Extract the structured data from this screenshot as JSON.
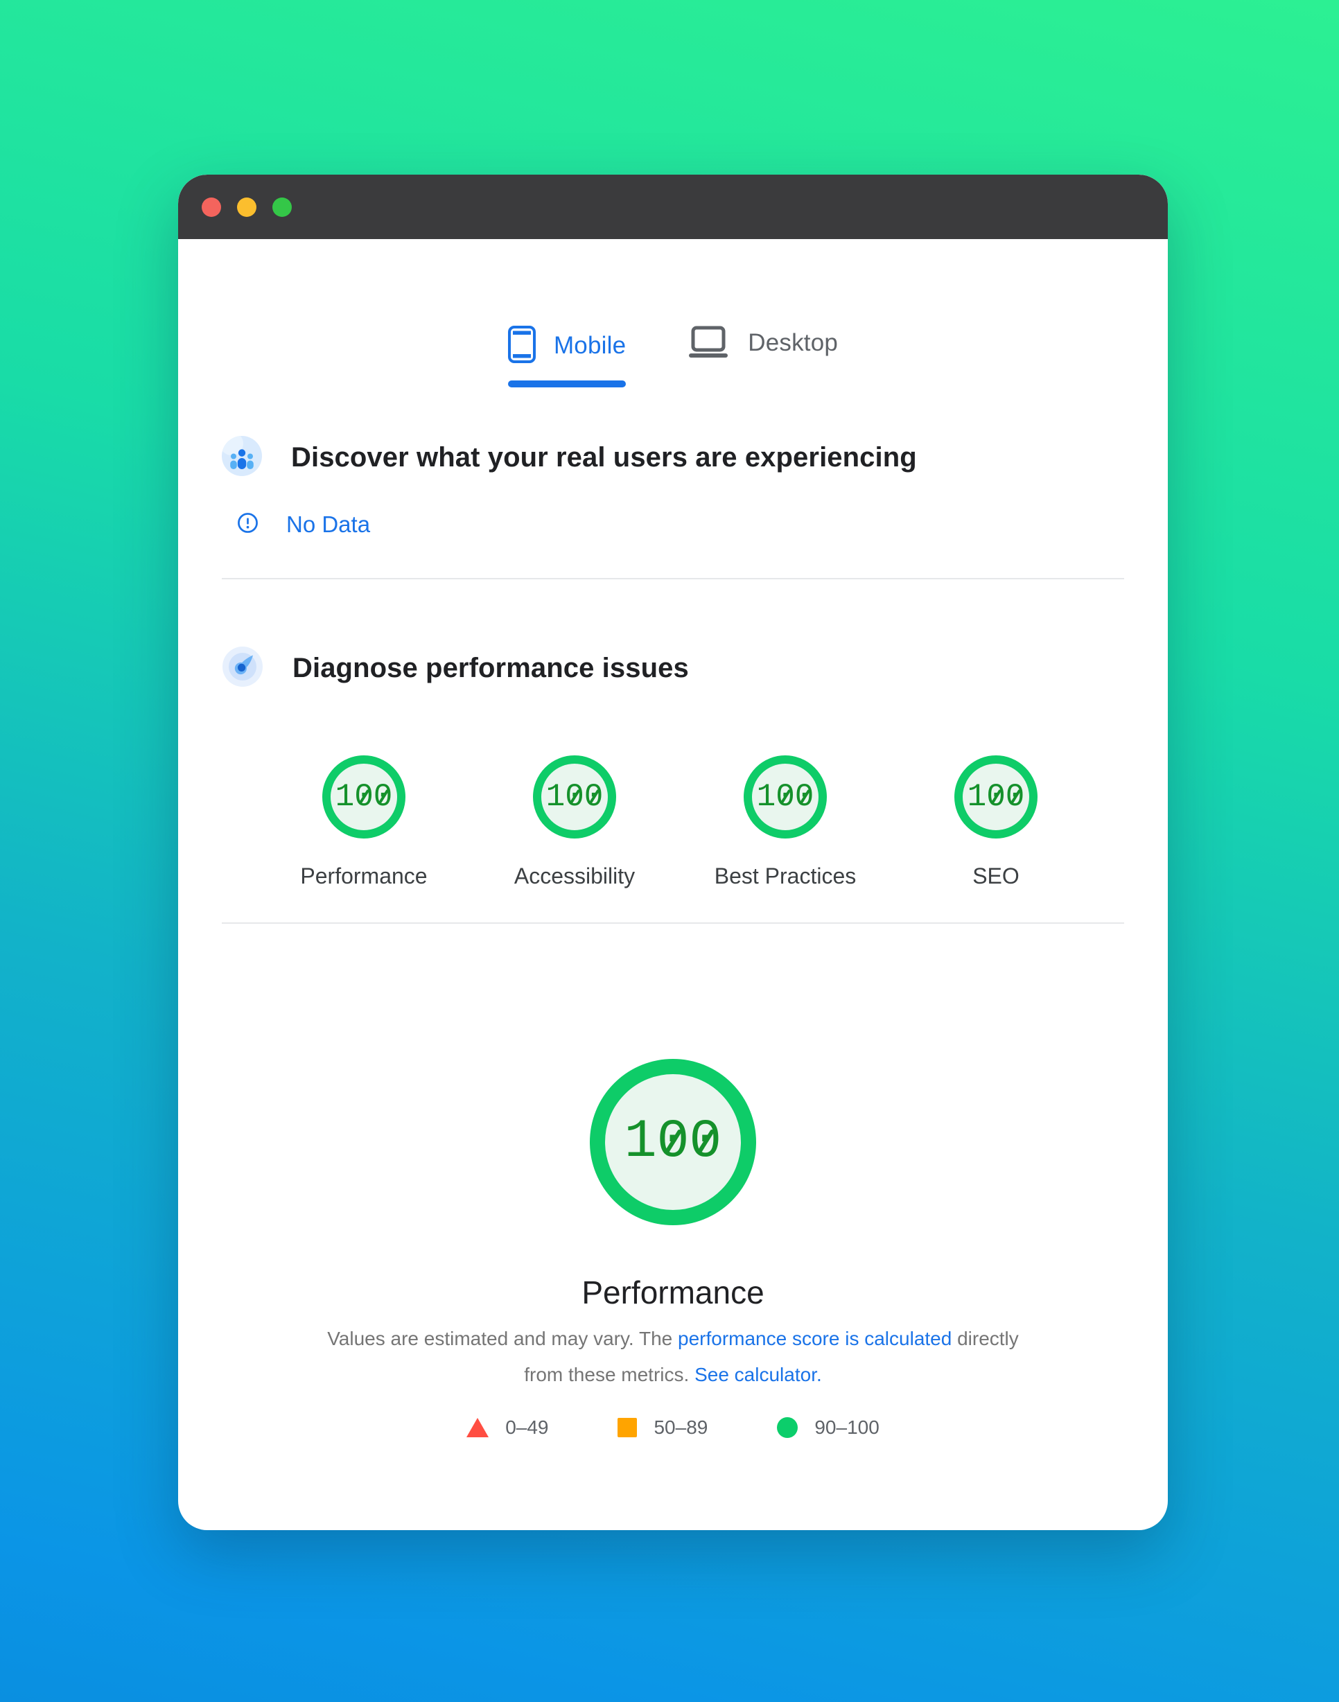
{
  "window": {
    "traffic_lights": [
      "close-button",
      "minimize-button",
      "zoom-button"
    ]
  },
  "tabs": [
    {
      "label": "Mobile",
      "icon": "phone-icon",
      "active": true
    },
    {
      "label": "Desktop",
      "icon": "laptop-icon",
      "active": false
    }
  ],
  "field_data": {
    "icon": "users-icon",
    "title": "Discover what your real users are experiencing",
    "status": {
      "icon": "alert-icon",
      "label": "No Data"
    }
  },
  "diagnose": {
    "icon": "compass-icon",
    "title": "Diagnose performance issues",
    "categories": [
      {
        "label": "Performance",
        "score": "100"
      },
      {
        "label": "Accessibility",
        "score": "100"
      },
      {
        "label": "Best Practices",
        "score": "100"
      },
      {
        "label": "SEO",
        "score": "100"
      }
    ]
  },
  "summary": {
    "score": "100",
    "title": "Performance",
    "description": [
      {
        "text": "Values are estimated and may vary. The ",
        "link": false
      },
      {
        "text": "performance score is calculated",
        "link": true
      },
      {
        "text": " directly from these metrics. ",
        "link": false
      },
      {
        "text": "See calculator.",
        "link": true
      }
    ],
    "legend": [
      {
        "shape": "triangle",
        "color": "#ff4e42",
        "range": "0–49"
      },
      {
        "shape": "square",
        "color": "#ffa400",
        "range": "50–89"
      },
      {
        "shape": "circle",
        "color": "#0cce6b",
        "range": "90–100"
      }
    ]
  },
  "colors": {
    "accent_blue": "#1a73e8",
    "score_ring_green": "#0ecc68",
    "score_text_green": "#15912b",
    "legend_red": "#ff4e42",
    "legend_orange": "#ffa400",
    "legend_green": "#0cce6b",
    "titlebar": "#3b3b3d"
  }
}
